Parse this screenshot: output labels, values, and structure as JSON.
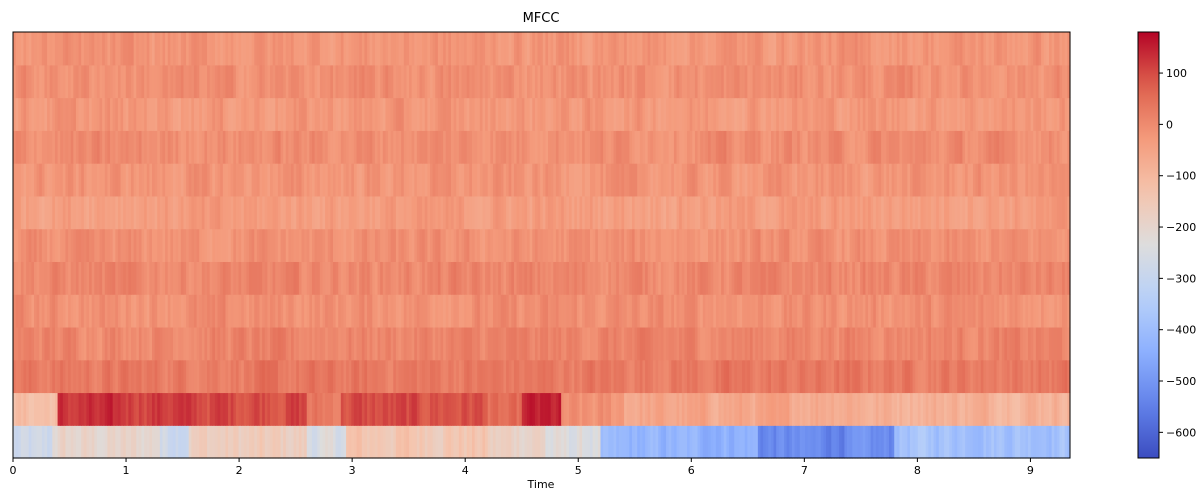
{
  "chart_data": {
    "type": "heatmap",
    "title": "MFCC",
    "xlabel": "Time",
    "ylabel": "",
    "xlim": [
      0,
      9.35
    ],
    "x_ticks": [
      0,
      1,
      2,
      3,
      4,
      5,
      6,
      7,
      8,
      9
    ],
    "x_tick_labels": [
      "0",
      "1",
      "2",
      "3",
      "4",
      "5",
      "6",
      "7",
      "8",
      "9"
    ],
    "n_coefficients": 13,
    "colormap": "coolwarm",
    "colorbar": {
      "vmin": -650,
      "vmax": 180,
      "ticks": [
        100,
        0,
        -100,
        -200,
        -300,
        -400,
        -500,
        -600
      ],
      "tick_labels": [
        "100",
        "0",
        "−100",
        "−200",
        "−300",
        "−400",
        "−500",
        "−600"
      ]
    },
    "coefficient_profiles": [
      {
        "index": 0,
        "segments": [
          {
            "x": [
              0.0,
              0.35
            ],
            "value": -290
          },
          {
            "x": [
              0.35,
              1.3
            ],
            "value": -200
          },
          {
            "x": [
              1.3,
              1.55
            ],
            "value": -270
          },
          {
            "x": [
              1.55,
              2.6
            ],
            "value": -170
          },
          {
            "x": [
              2.6,
              2.95
            ],
            "value": -250
          },
          {
            "x": [
              2.95,
              4.2
            ],
            "value": -140
          },
          {
            "x": [
              4.2,
              4.7
            ],
            "value": -180
          },
          {
            "x": [
              4.7,
              5.2
            ],
            "value": -240
          },
          {
            "x": [
              5.2,
              6.6
            ],
            "value": -430
          },
          {
            "x": [
              6.6,
              7.8
            ],
            "value": -530
          },
          {
            "x": [
              7.8,
              9.35
            ],
            "value": -380
          }
        ]
      },
      {
        "index": 1,
        "segments": [
          {
            "x": [
              0.0,
              0.4
            ],
            "value": -120
          },
          {
            "x": [
              0.4,
              1.5
            ],
            "value": 120
          },
          {
            "x": [
              1.5,
              2.6
            ],
            "value": 105
          },
          {
            "x": [
              2.6,
              2.9
            ],
            "value": 30
          },
          {
            "x": [
              2.9,
              4.2
            ],
            "value": 95
          },
          {
            "x": [
              4.2,
              4.5
            ],
            "value": 40
          },
          {
            "x": [
              4.5,
              4.85
            ],
            "value": 140
          },
          {
            "x": [
              4.85,
              5.4
            ],
            "value": -20
          },
          {
            "x": [
              5.4,
              7.5
            ],
            "value": -60
          },
          {
            "x": [
              7.5,
              9.35
            ],
            "value": -80
          }
        ]
      },
      {
        "index": 2,
        "mean": 30
      },
      {
        "index": 3,
        "mean": 10
      },
      {
        "index": 4,
        "mean": -10
      },
      {
        "index": 5,
        "mean": 5
      },
      {
        "index": 6,
        "mean": -15
      },
      {
        "index": 7,
        "mean": -35
      },
      {
        "index": 8,
        "mean": -20
      },
      {
        "index": 9,
        "mean": -5
      },
      {
        "index": 10,
        "mean": -25
      },
      {
        "index": 11,
        "mean": -10
      },
      {
        "index": 12,
        "mean": -20
      }
    ]
  }
}
